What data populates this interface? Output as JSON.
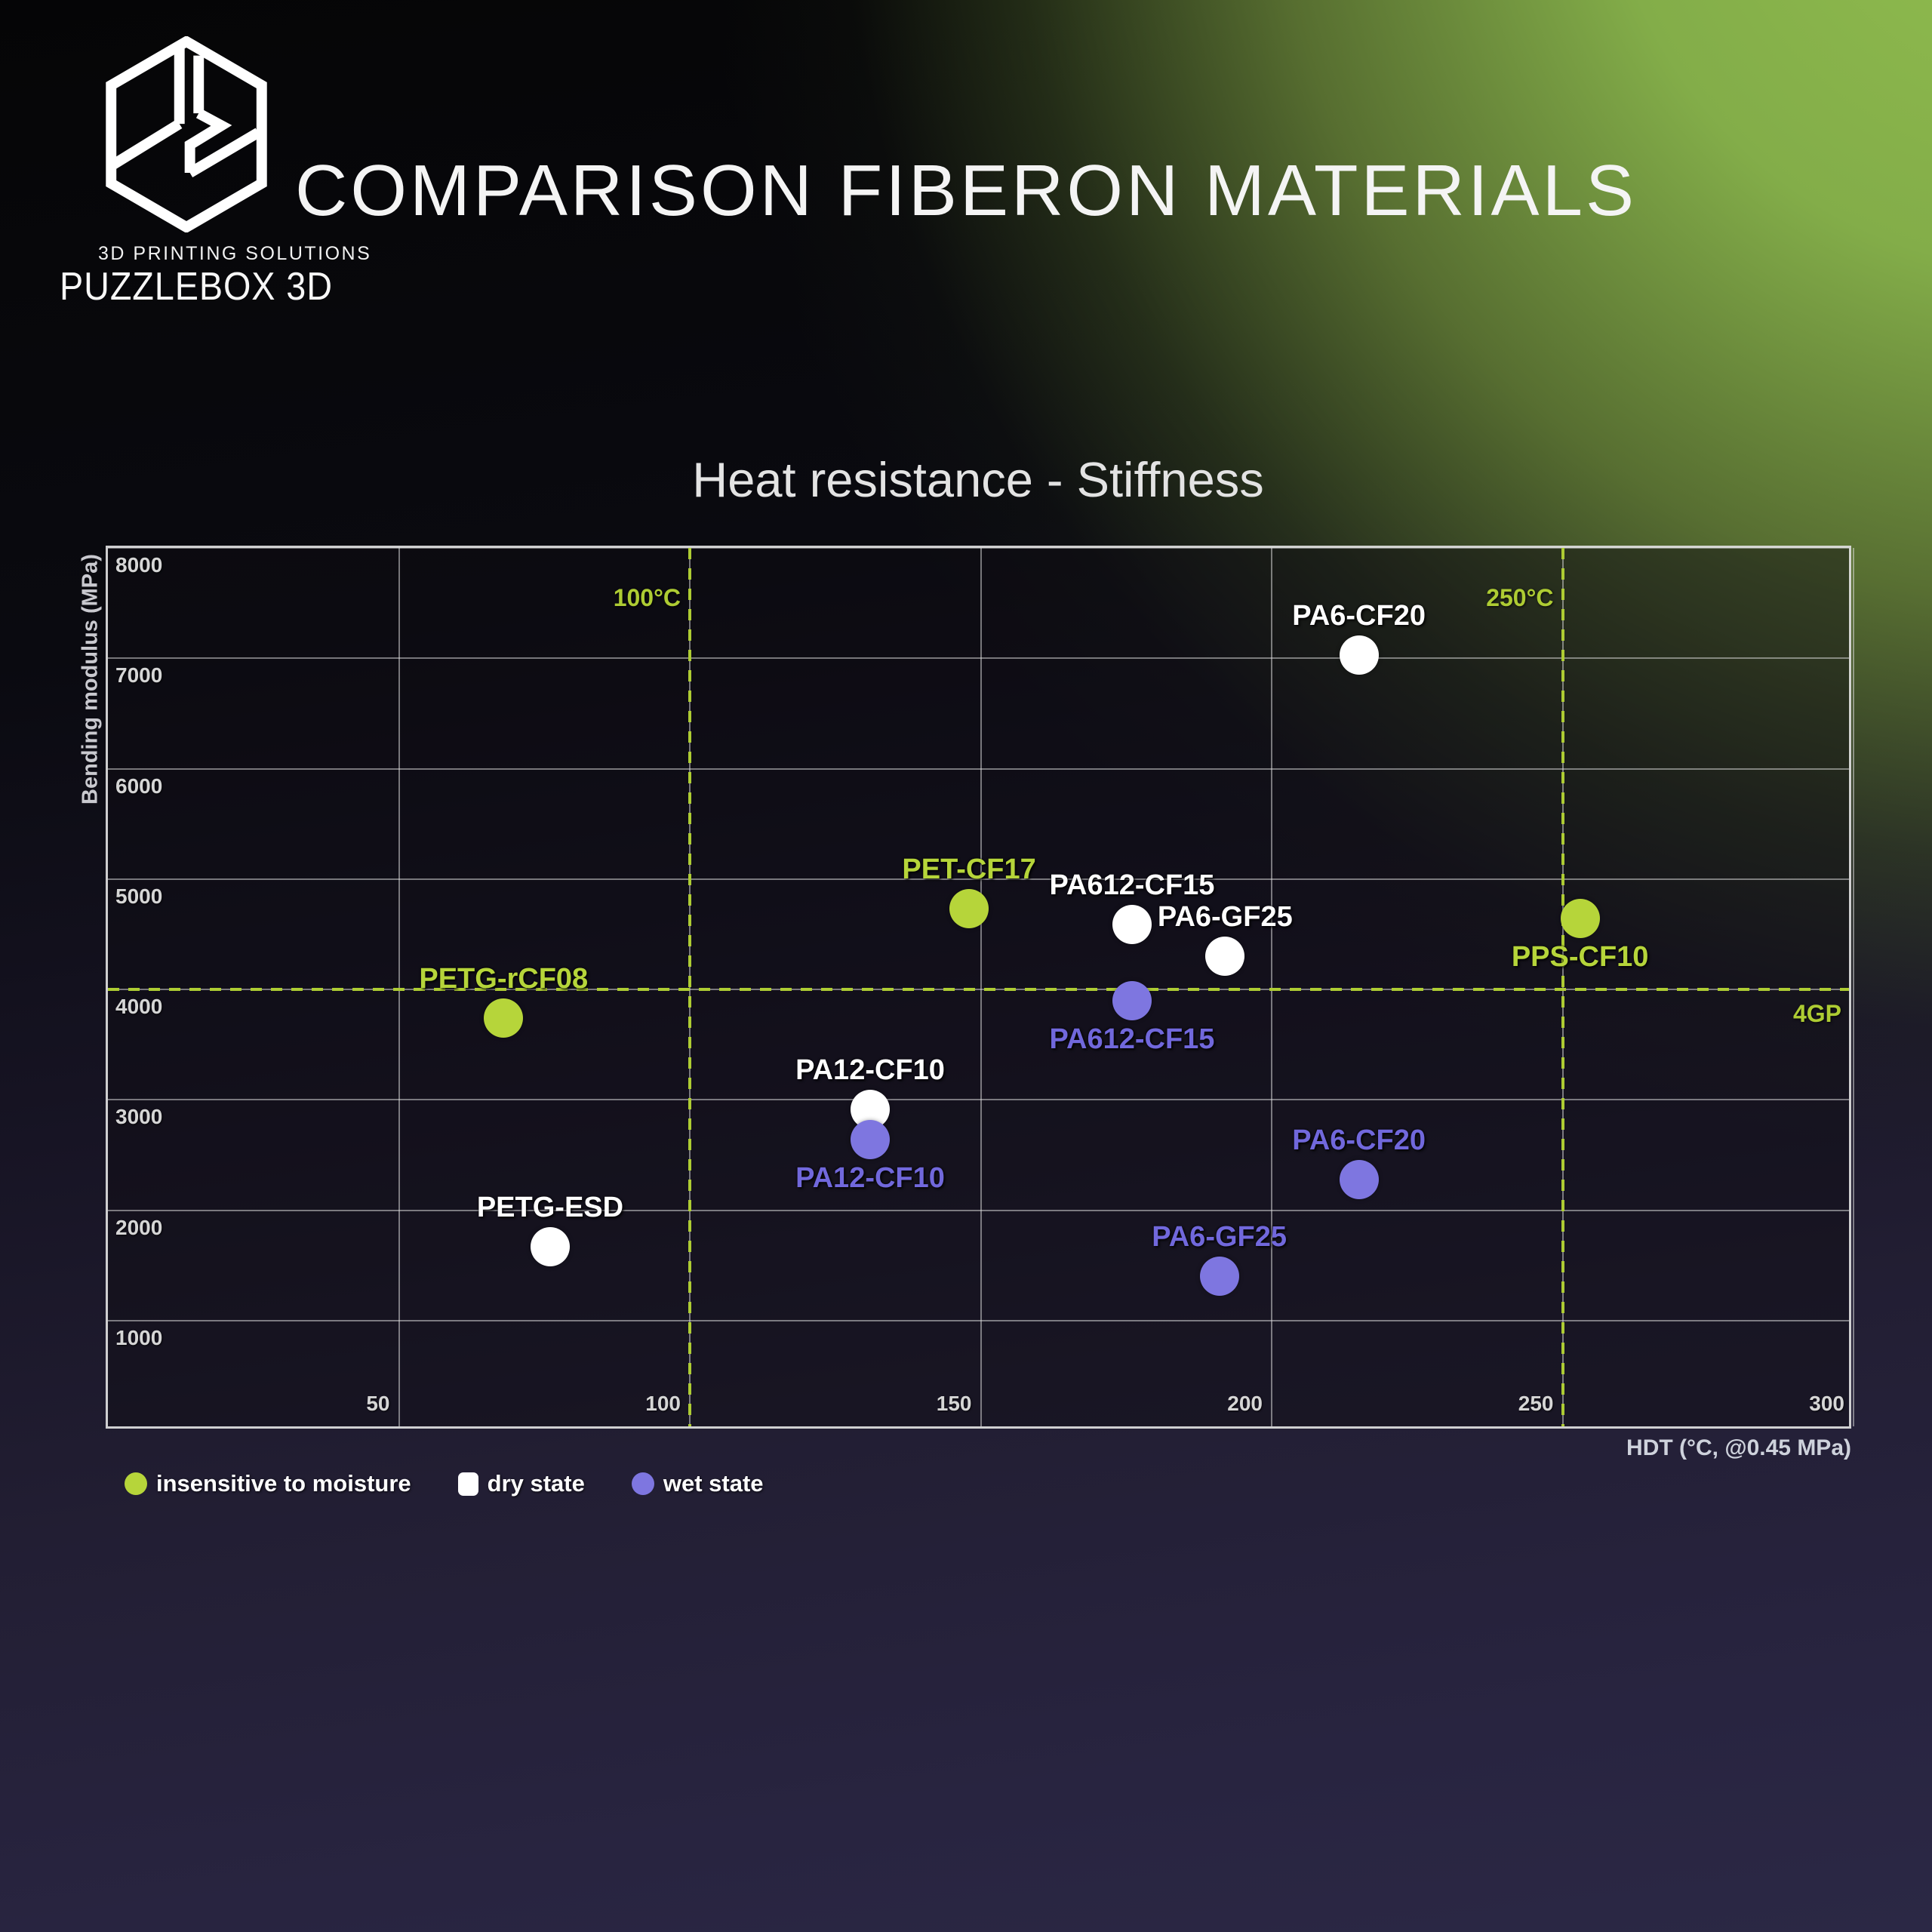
{
  "logo": {
    "tagline": "3D PRINTING SOLUTIONS",
    "name": "PUZZLEBOX 3D"
  },
  "header": {
    "title": "COMPARISON FIBERON MATERIALS"
  },
  "colors": {
    "green": "#b6d53a",
    "white": "#ffffff",
    "purple": "#7e76e0",
    "purple_label": "#7168dc",
    "reference_green": "#aecc33",
    "grid": "#e1e1e1"
  },
  "chart_data": {
    "type": "scatter",
    "title": "Heat resistance - Stiffness",
    "xlabel": "HDT (°C, @0.45 MPa)",
    "ylabel": "Bending modulus (MPa)",
    "xlim": [
      0,
      300
    ],
    "ylim": [
      0,
      8000
    ],
    "x_ticks": [
      50,
      100,
      150,
      200,
      250,
      300
    ],
    "y_ticks": [
      1000,
      2000,
      3000,
      4000,
      5000,
      6000,
      7000,
      8000
    ],
    "grid": true,
    "legend_position": "bottom-left",
    "reference_lines": {
      "vertical": [
        {
          "x": 100,
          "label": "100°C"
        },
        {
          "x": 250,
          "label": "250°C"
        }
      ],
      "horizontal": [
        {
          "y": 4000,
          "label": "4GP"
        }
      ]
    },
    "series": [
      {
        "name": "insensitive to moisture",
        "color": "#b6d53a",
        "label_color": "#b6d53a",
        "points": [
          {
            "label": "PET-CF17",
            "x": 148,
            "y": 4730,
            "label_pos": "above"
          },
          {
            "label": "PETG-rCF08",
            "x": 68,
            "y": 3740,
            "label_pos": "above"
          },
          {
            "label": "PPS-CF10",
            "x": 253,
            "y": 4640,
            "label_pos": "below"
          }
        ]
      },
      {
        "name": "dry state",
        "color": "#ffffff",
        "label_color": "#ffffff",
        "points": [
          {
            "label": "PA6-CF20",
            "x": 215,
            "y": 7030,
            "label_pos": "above"
          },
          {
            "label": "PA612-CF15",
            "x": 176,
            "y": 4590,
            "label_pos": "above"
          },
          {
            "label": "PA6-GF25",
            "x": 192,
            "y": 4300,
            "label_pos": "above"
          },
          {
            "label": "PA12-CF10",
            "x": 131,
            "y": 2910,
            "label_pos": "above"
          },
          {
            "label": "PETG-ESD",
            "x": 76,
            "y": 1670,
            "label_pos": "above"
          }
        ]
      },
      {
        "name": "wet state",
        "color": "#7e76e0",
        "label_color": "#7168dc",
        "points": [
          {
            "label": "PA612-CF15",
            "x": 176,
            "y": 3900,
            "label_pos": "below"
          },
          {
            "label": "PA12-CF10",
            "x": 131,
            "y": 2640,
            "label_pos": "below"
          },
          {
            "label": "PA6-CF20",
            "x": 215,
            "y": 2280,
            "label_pos": "above"
          },
          {
            "label": "PA6-GF25",
            "x": 191,
            "y": 1400,
            "label_pos": "above"
          }
        ]
      }
    ],
    "legend": [
      {
        "marker": "circle",
        "color": "#b6d53a",
        "label": "insensitive to moisture"
      },
      {
        "marker": "square",
        "color": "#ffffff",
        "label": "dry state"
      },
      {
        "marker": "circle",
        "color": "#7e76e0",
        "label": "wet state"
      }
    ]
  }
}
